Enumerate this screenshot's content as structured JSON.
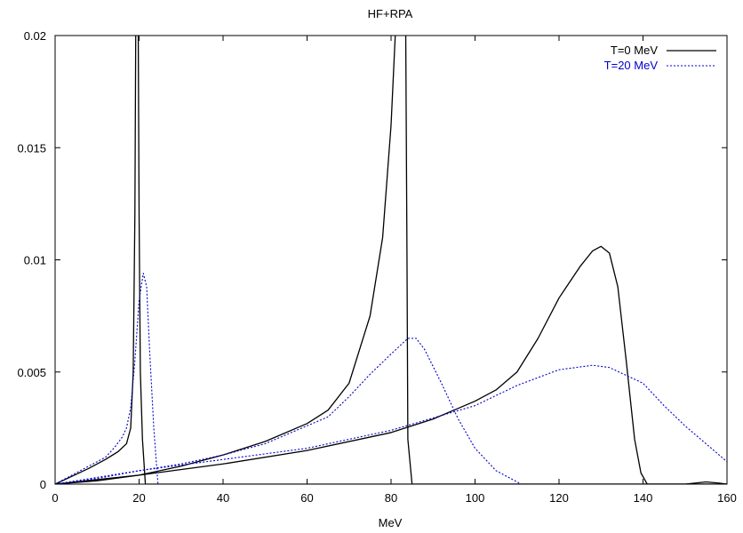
{
  "chart_data": {
    "type": "line",
    "title": "HF+RPA",
    "xlabel": "MeV",
    "ylabel": "",
    "xlim": [
      0,
      160
    ],
    "ylim": [
      0,
      0.02
    ],
    "x_ticks": [
      0,
      20,
      40,
      60,
      80,
      100,
      120,
      140,
      160
    ],
    "y_ticks": [
      0,
      0.005,
      0.01,
      0.015,
      0.02
    ],
    "x_tick_labels": [
      "0",
      "20",
      "40",
      "60",
      "80",
      "100",
      "120",
      "140",
      "160"
    ],
    "y_tick_labels": [
      "0",
      "0.005",
      "0.01",
      "0.015",
      "0.02"
    ],
    "grid": false,
    "legend_position": "top-right",
    "colors": {
      "T0": "#000000",
      "T20": "#0000cc"
    },
    "series": [
      {
        "name": "T=0 MeV",
        "style": "solid",
        "color_key": "T0",
        "curves": [
          [
            [
              0,
              0
            ],
            [
              4,
              0.00035
            ],
            [
              8,
              0.0007
            ],
            [
              12,
              0.0011
            ],
            [
              15,
              0.00145
            ],
            [
              17,
              0.0018
            ],
            [
              18,
              0.0025
            ],
            [
              18.6,
              0.005
            ],
            [
              19,
              0.012
            ],
            [
              19.2,
              0.02
            ]
          ],
          [
            [
              19.8,
              0.02
            ],
            [
              20,
              0.012
            ],
            [
              20.3,
              0.005
            ],
            [
              20.8,
              0.002
            ],
            [
              21.5,
              0
            ],
            [
              160,
              0
            ]
          ],
          [
            [
              0,
              0
            ],
            [
              10,
              0.00015
            ],
            [
              20,
              0.0004
            ],
            [
              30,
              0.0008
            ],
            [
              40,
              0.0013
            ],
            [
              50,
              0.0019
            ],
            [
              60,
              0.0027
            ],
            [
              65,
              0.0033
            ],
            [
              70,
              0.0045
            ],
            [
              75,
              0.0075
            ],
            [
              78,
              0.011
            ],
            [
              80,
              0.016
            ],
            [
              81,
              0.02
            ]
          ],
          [
            [
              83.5,
              0.02
            ],
            [
              83.8,
              0.01
            ],
            [
              84,
              0.002
            ],
            [
              84.5,
              0.001
            ],
            [
              85,
              0
            ],
            [
              160,
              0
            ]
          ],
          [
            [
              0,
              0
            ],
            [
              20,
              0.0004
            ],
            [
              40,
              0.0009
            ],
            [
              60,
              0.0015
            ],
            [
              80,
              0.0023
            ],
            [
              90,
              0.0029
            ],
            [
              100,
              0.0037
            ],
            [
              105,
              0.0042
            ],
            [
              110,
              0.005
            ],
            [
              115,
              0.0065
            ],
            [
              120,
              0.0083
            ],
            [
              125,
              0.0097
            ],
            [
              128,
              0.0104
            ],
            [
              130,
              0.0106
            ],
            [
              132,
              0.0103
            ],
            [
              134,
              0.0088
            ],
            [
              136,
              0.0055
            ],
            [
              138,
              0.002
            ],
            [
              139.5,
              0.0005
            ],
            [
              141,
              0
            ],
            [
              150,
              0
            ],
            [
              155,
              0.0001
            ],
            [
              158,
              5e-05
            ],
            [
              160,
              0
            ]
          ]
        ]
      },
      {
        "name": "T=20 MeV",
        "style": "dotted",
        "color_key": "T20",
        "curves": [
          [
            [
              0,
              0
            ],
            [
              4,
              0.0004
            ],
            [
              8,
              0.0008
            ],
            [
              12,
              0.0012
            ],
            [
              14,
              0.0016
            ],
            [
              16,
              0.0021
            ],
            [
              17,
              0.0025
            ],
            [
              18,
              0.0034
            ],
            [
              19,
              0.0055
            ],
            [
              20,
              0.0082
            ],
            [
              21,
              0.0094
            ],
            [
              21.8,
              0.0088
            ],
            [
              22.5,
              0.006
            ],
            [
              23.5,
              0.0025
            ],
            [
              24.5,
              0
            ],
            [
              160,
              0
            ]
          ],
          [
            [
              0,
              0
            ],
            [
              10,
              0.00025
            ],
            [
              20,
              0.0006
            ],
            [
              30,
              0.0009
            ],
            [
              40,
              0.0013
            ],
            [
              50,
              0.0018
            ],
            [
              60,
              0.0026
            ],
            [
              65,
              0.003
            ],
            [
              70,
              0.0039
            ],
            [
              75,
              0.0049
            ],
            [
              80,
              0.0058
            ],
            [
              84,
              0.0065
            ],
            [
              86,
              0.0065
            ],
            [
              88,
              0.006
            ],
            [
              92,
              0.0045
            ],
            [
              96,
              0.0029
            ],
            [
              100,
              0.0016
            ],
            [
              105,
              0.0006
            ],
            [
              111,
              0
            ],
            [
              160,
              0
            ]
          ],
          [
            [
              0,
              0
            ],
            [
              20,
              0.0006
            ],
            [
              40,
              0.0011
            ],
            [
              60,
              0.0016
            ],
            [
              80,
              0.0024
            ],
            [
              100,
              0.0035
            ],
            [
              110,
              0.0044
            ],
            [
              120,
              0.0051
            ],
            [
              128,
              0.0053
            ],
            [
              132,
              0.0052
            ],
            [
              140,
              0.0045
            ],
            [
              145,
              0.0035
            ],
            [
              150,
              0.0026
            ],
            [
              155,
              0.0018
            ],
            [
              160,
              0.001
            ]
          ]
        ]
      }
    ]
  }
}
